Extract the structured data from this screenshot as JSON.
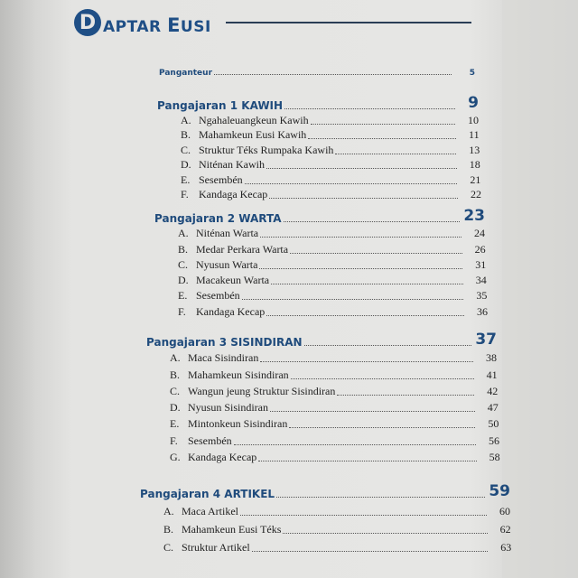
{
  "title": {
    "initial": "D",
    "rest_a": "APTAR ",
    "rest_b_big": "E",
    "rest_b": "USI"
  },
  "preface": {
    "label": "Panganteur",
    "page": "5"
  },
  "sections": [
    {
      "label": "Pangajaran 1 KAWIH",
      "page": "9",
      "items": [
        {
          "letter": "A.",
          "label": "Ngahaleuangkeun Kawih",
          "page": "10"
        },
        {
          "letter": "B.",
          "label": "Mahamkeun Eusi Kawih",
          "page": "11"
        },
        {
          "letter": "C.",
          "label": "Struktur Téks Rumpaka Kawih",
          "page": "13"
        },
        {
          "letter": "D.",
          "label": "Niténan Kawih",
          "page": "18"
        },
        {
          "letter": "E.",
          "label": "Sesembén",
          "page": "21"
        },
        {
          "letter": "F.",
          "label": "Kandaga Kecap",
          "page": "22"
        }
      ]
    },
    {
      "label": "Pangajaran 2 WARTA",
      "page": "23",
      "items": [
        {
          "letter": "A.",
          "label": "Niténan Warta",
          "page": "24"
        },
        {
          "letter": "B.",
          "label": "Medar Perkara Warta",
          "page": "26"
        },
        {
          "letter": "C.",
          "label": "Nyusun Warta",
          "page": "31"
        },
        {
          "letter": "D.",
          "label": "Macakeun Warta",
          "page": "34"
        },
        {
          "letter": "E.",
          "label": "Sesembén",
          "page": "35"
        },
        {
          "letter": "F.",
          "label": "Kandaga Kecap",
          "page": "36"
        }
      ]
    },
    {
      "label": "Pangajaran 3 SISINDIRAN",
      "page": "37",
      "items": [
        {
          "letter": "A.",
          "label": "Maca Sisindiran",
          "page": "38"
        },
        {
          "letter": "B.",
          "label": "Mahamkeun Sisindiran",
          "page": "41"
        },
        {
          "letter": "C.",
          "label": "Wangun jeung Struktur Sisindiran",
          "page": "42"
        },
        {
          "letter": "D.",
          "label": "Nyusun Sisindiran",
          "page": "47"
        },
        {
          "letter": "E.",
          "label": "Mintonkeun Sisindiran",
          "page": "50"
        },
        {
          "letter": "F.",
          "label": "Sesembén",
          "page": "56"
        },
        {
          "letter": "G.",
          "label": "Kandaga Kecap",
          "page": "58"
        }
      ]
    },
    {
      "label": "Pangajaran 4 ARTIKEL",
      "page": "59",
      "items": [
        {
          "letter": "A.",
          "label": "Maca Artikel",
          "page": "60"
        },
        {
          "letter": "B.",
          "label": "Mahamkeun Eusi Téks",
          "page": "62"
        },
        {
          "letter": "C.",
          "label": "Struktur Artikel",
          "page": "63"
        }
      ]
    }
  ],
  "colors": {
    "heading": "#1f4b7c",
    "title": "#1f4f86"
  }
}
